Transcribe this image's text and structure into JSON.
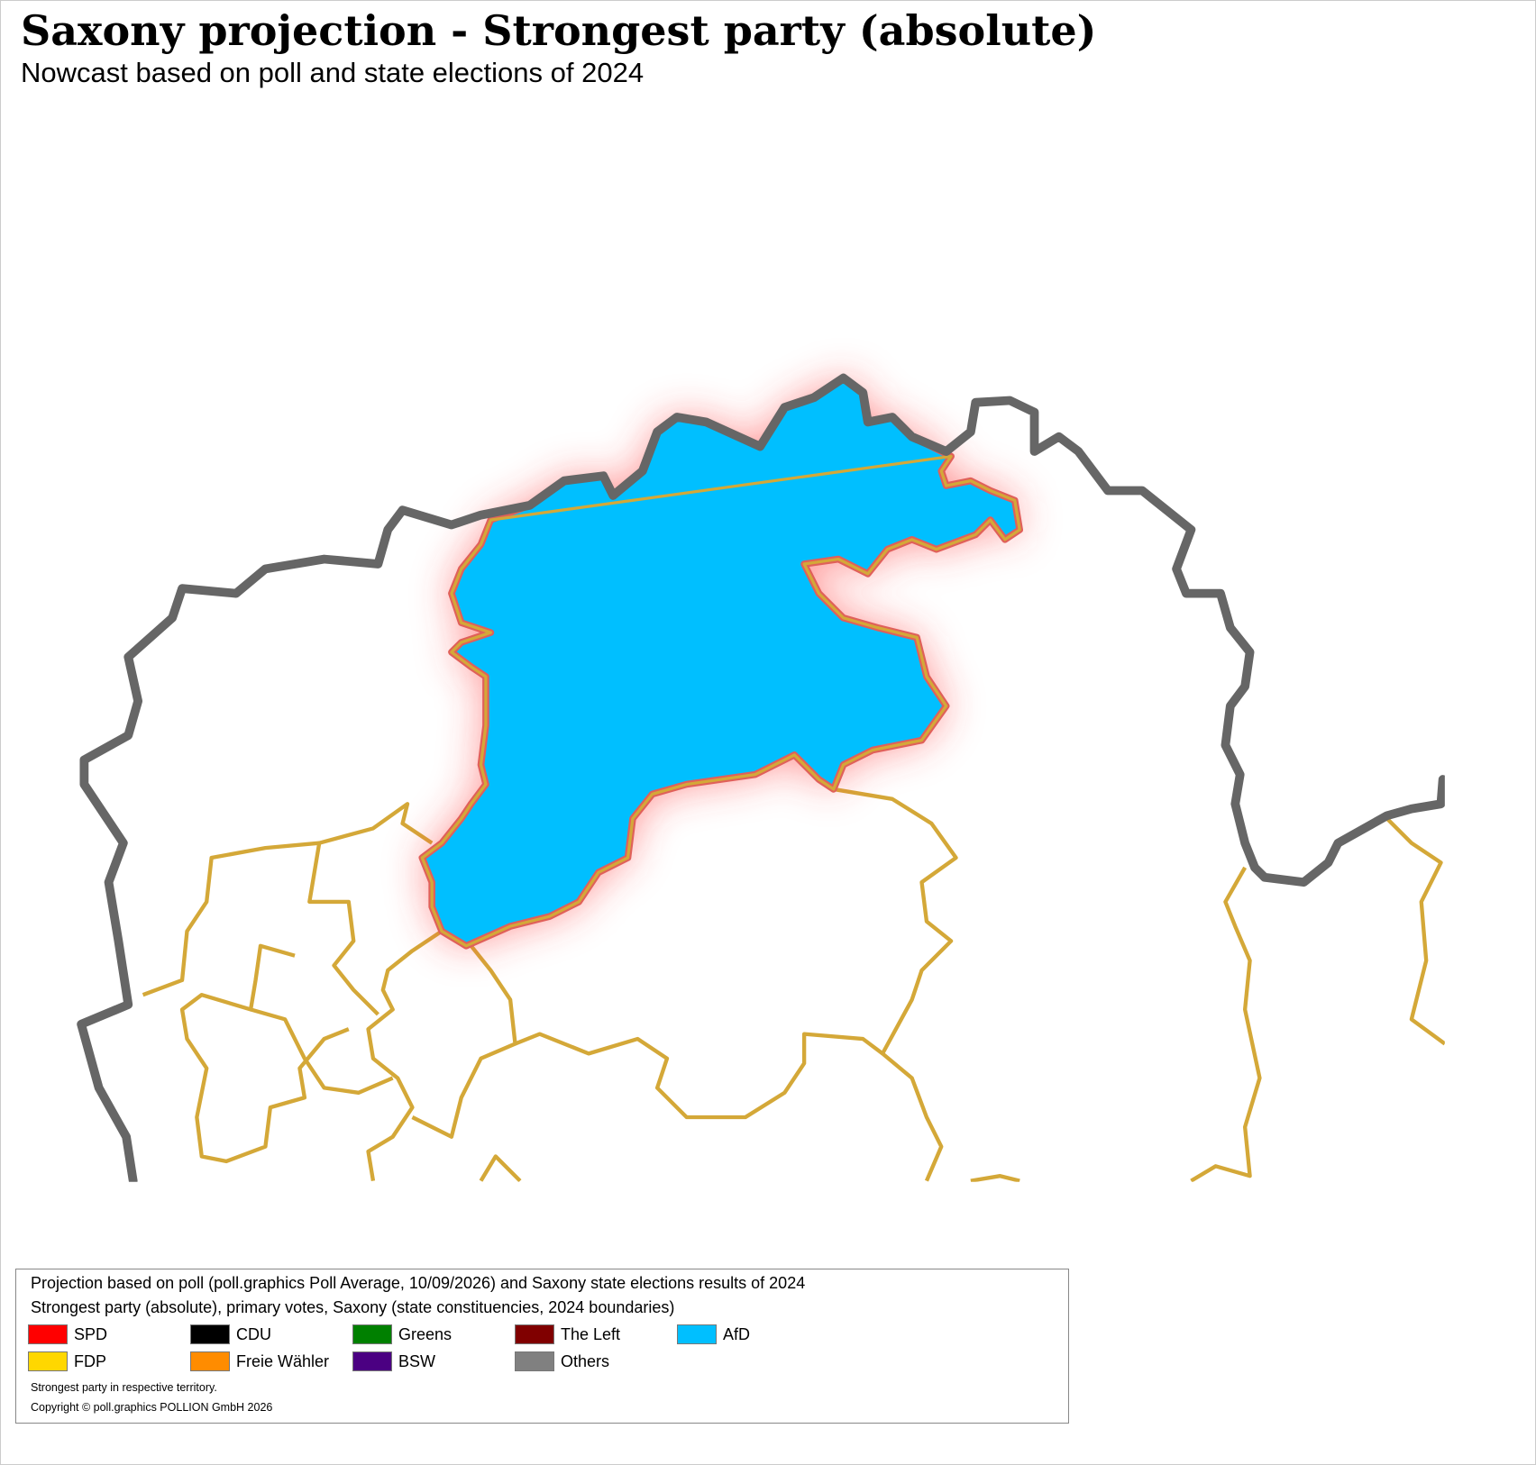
{
  "header": {
    "title": "Saxony projection - Strongest party (absolute)",
    "subtitle": "Nowcast based on poll and state elections of 2024"
  },
  "legend": {
    "lines": [
      "Projection based on poll (poll.graphics Poll Average, 10/09/2026) and Saxony state elections results of 2024",
      "Strongest party (absolute), primary votes, Saxony (state constituencies, 2024 boundaries)"
    ],
    "items": [
      {
        "label": "SPD",
        "color": "#ff0000"
      },
      {
        "label": "CDU",
        "color": "#000000"
      },
      {
        "label": "Greens",
        "color": "#008000"
      },
      {
        "label": "The Left",
        "color": "#800000"
      },
      {
        "label": "AfD",
        "color": "#00bfff"
      },
      {
        "label": "FDP",
        "color": "#ffd700"
      },
      {
        "label": "Freie Wähler",
        "color": "#ff8c00"
      },
      {
        "label": "BSW",
        "color": "#4b0082"
      },
      {
        "label": "Others",
        "color": "#808080"
      }
    ],
    "note": "Strongest party in respective territory.",
    "copyright": "Copyright © poll.graphics POLLION GmbH 2026"
  }
}
